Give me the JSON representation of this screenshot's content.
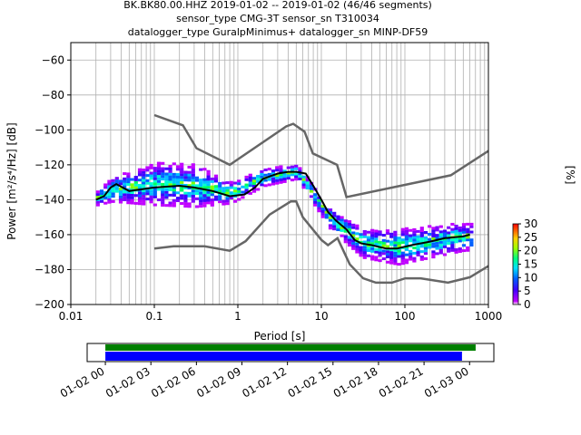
{
  "title": {
    "line1": "BK.BK80.00.HHZ   2019-01-02 -- 2019-01-02  (46/46 segments)",
    "line2": "sensor_type CMG-3T sensor_sn T310034",
    "line3": "datalogger_type GuralpMinimus+ datalogger_sn MINP-DF59"
  },
  "chart_data": [
    {
      "type": "heatmap",
      "title": "BK.BK80.00.HHZ   2019-01-02 -- 2019-01-02  (46/46 segments)",
      "xlabel": "Period [s]",
      "ylabel": "Power [m²/s⁴/Hz] [dB]",
      "xscale": "log",
      "xlim": [
        0.01,
        1000
      ],
      "ylim": [
        -200,
        -50
      ],
      "x_ticks": [
        "0.01",
        "0.1",
        "1",
        "10",
        "100",
        "1000"
      ],
      "y_ticks": [
        "−60",
        "−80",
        "−100",
        "−120",
        "−140",
        "−160",
        "−180",
        "−200"
      ],
      "grid": true,
      "colorbar": {
        "label": "[%]",
        "range": [
          0,
          30
        ],
        "ticks": [
          "0",
          "5",
          "10",
          "15",
          "20",
          "25",
          "30"
        ]
      },
      "series": [
        {
          "name": "",
          "role": "noise-model-high",
          "color": "#666666",
          "x": [
            0.1,
            0.22,
            0.32,
            0.8,
            3.8,
            4.6,
            6.3,
            7.9,
            15.4,
            20,
            354.8,
            1000
          ],
          "y": [
            -91.5,
            -97.4,
            -110.5,
            -120,
            -98,
            -96.5,
            -101,
            -113.5,
            -120,
            -138.5,
            -126,
            -112
          ]
        },
        {
          "name": "",
          "role": "noise-model-low",
          "color": "#666666",
          "x": [
            0.1,
            0.17,
            0.4,
            0.8,
            1.24,
            2.4,
            4.3,
            5.0,
            6.0,
            10,
            12,
            15.6,
            21.9,
            31.6,
            45,
            70,
            101,
            154,
            328,
            600,
            1000
          ],
          "y": [
            -168,
            -166.7,
            -166.7,
            -169.2,
            -163.7,
            -148.5,
            -141,
            -141,
            -150,
            -163,
            -166,
            -162,
            -177,
            -185,
            -187.5,
            -187.5,
            -185,
            -185,
            -187.5,
            -184.4,
            -178
          ]
        },
        {
          "name": "",
          "role": "mode",
          "color": "#000000",
          "x": [
            0.02,
            0.025,
            0.03,
            0.035,
            0.05,
            0.1,
            0.2,
            0.3,
            0.5,
            0.8,
            1.2,
            1.6,
            2.0,
            3.0,
            4.0,
            5.0,
            6.5,
            8,
            10,
            12,
            15,
            20,
            25,
            30,
            40,
            60,
            80,
            120,
            200,
            300,
            500,
            600
          ],
          "y": [
            -140,
            -138,
            -133,
            -131,
            -135,
            -133,
            -132,
            -133,
            -135,
            -138,
            -137,
            -133,
            -128,
            -125,
            -124,
            -124,
            -125,
            -132,
            -140,
            -147,
            -152,
            -157,
            -163,
            -165,
            -166,
            -168,
            -168,
            -166,
            -164,
            -162,
            -161,
            -160
          ]
        }
      ],
      "psd_cloud": {
        "x_range": [
          0.02,
          600
        ],
        "y_center": [
          -139,
          -134,
          -131,
          -132,
          -136,
          -127,
          -124,
          -150,
          -165,
          -167,
          -161
        ],
        "y_center_x": [
          0.02,
          0.03,
          0.1,
          0.3,
          0.8,
          2,
          5,
          12,
          30,
          80,
          500
        ],
        "spread_db": [
          4,
          7,
          12,
          12,
          6,
          5,
          4,
          6,
          8,
          10,
          8
        ]
      }
    },
    {
      "type": "bar",
      "role": "data-coverage",
      "x_ticks": [
        "01-02 00",
        "01-02 03",
        "01-02 06",
        "01-02 09",
        "01-02 12",
        "01-02 15",
        "01-02 18",
        "01-02 21",
        "01-03 00"
      ],
      "xlim_hours": [
        -1.2,
        25.6
      ],
      "bars": [
        {
          "name": "",
          "color": "#008000",
          "start_hour": 0,
          "end_hour": 24.4
        },
        {
          "name": "",
          "color": "#0000ff",
          "start_hour": 0,
          "end_hour": 23.5
        }
      ]
    }
  ]
}
